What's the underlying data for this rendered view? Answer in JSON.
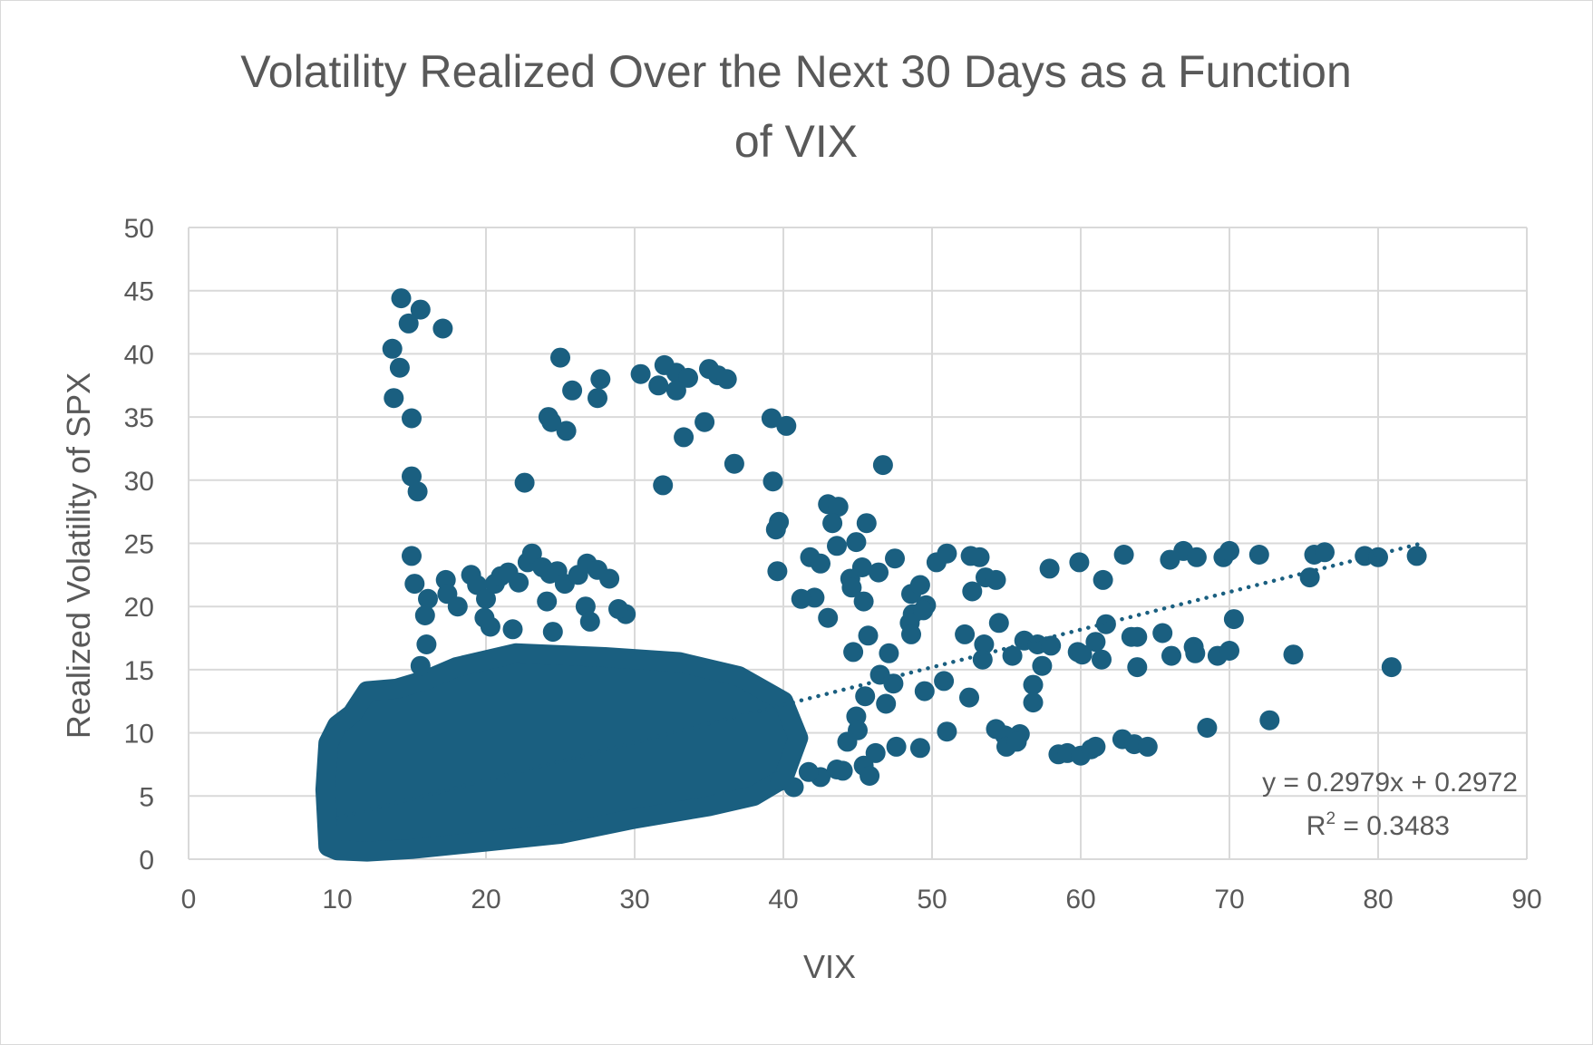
{
  "chart_data": {
    "type": "scatter",
    "title_lines": [
      "Volatility Realized Over the Next 30 Days as a Function",
      "of VIX"
    ],
    "xlabel": "VIX",
    "ylabel": "Realized Volatility of SPX",
    "xlim": [
      0,
      90
    ],
    "ylim": [
      0,
      50
    ],
    "x_ticks": [
      0,
      10,
      20,
      30,
      40,
      50,
      60,
      70,
      80,
      90
    ],
    "y_ticks": [
      0,
      5,
      10,
      15,
      20,
      25,
      30,
      35,
      40,
      45,
      50
    ],
    "grid": true,
    "point_color": "#1a5f80",
    "trendline": {
      "type": "linear",
      "style": "dotted",
      "slope": 0.2979,
      "intercept": 0.2972,
      "x_range": [
        10,
        83
      ],
      "equation_text": "y = 0.2979x + 0.2972",
      "r2_prefix": "R",
      "r2_superscript": "2",
      "r2_suffix": " = 0.3483"
    },
    "points": [
      [
        14.3,
        44.4
      ],
      [
        15.6,
        43.5
      ],
      [
        14.8,
        42.4
      ],
      [
        17.1,
        42.0
      ],
      [
        13.7,
        40.4
      ],
      [
        14.2,
        38.9
      ],
      [
        13.8,
        36.5
      ],
      [
        15.0,
        34.9
      ],
      [
        15.0,
        30.3
      ],
      [
        15.4,
        29.1
      ],
      [
        15.0,
        24.0
      ],
      [
        15.2,
        21.8
      ],
      [
        16.1,
        20.6
      ],
      [
        15.9,
        19.3
      ],
      [
        16.0,
        17.0
      ],
      [
        15.6,
        15.3
      ],
      [
        25.0,
        39.7
      ],
      [
        25.8,
        37.1
      ],
      [
        27.7,
        38.0
      ],
      [
        27.5,
        36.5
      ],
      [
        24.2,
        35.0
      ],
      [
        24.4,
        34.6
      ],
      [
        25.4,
        33.9
      ],
      [
        22.6,
        29.8
      ],
      [
        30.4,
        38.4
      ],
      [
        32.0,
        39.1
      ],
      [
        32.8,
        38.5
      ],
      [
        33.6,
        38.1
      ],
      [
        31.6,
        37.5
      ],
      [
        32.8,
        37.1
      ],
      [
        35.0,
        38.8
      ],
      [
        35.6,
        38.3
      ],
      [
        36.2,
        38.0
      ],
      [
        34.7,
        34.6
      ],
      [
        33.3,
        33.4
      ],
      [
        36.7,
        31.3
      ],
      [
        31.9,
        29.6
      ],
      [
        39.2,
        34.9
      ],
      [
        40.2,
        34.3
      ],
      [
        39.3,
        29.9
      ],
      [
        39.7,
        26.7
      ],
      [
        39.5,
        26.1
      ],
      [
        39.6,
        22.8
      ],
      [
        43.0,
        28.1
      ],
      [
        43.7,
        27.9
      ],
      [
        43.3,
        26.6
      ],
      [
        45.6,
        26.6
      ],
      [
        43.6,
        24.8
      ],
      [
        44.9,
        25.1
      ],
      [
        46.7,
        31.2
      ],
      [
        41.8,
        23.9
      ],
      [
        42.5,
        23.4
      ],
      [
        44.5,
        22.2
      ],
      [
        45.3,
        23.1
      ],
      [
        46.4,
        22.7
      ],
      [
        47.5,
        23.8
      ],
      [
        44.6,
        21.5
      ],
      [
        45.4,
        20.4
      ],
      [
        42.1,
        20.7
      ],
      [
        41.2,
        20.6
      ],
      [
        43.0,
        19.1
      ],
      [
        17.3,
        22.1
      ],
      [
        17.4,
        21.0
      ],
      [
        18.1,
        20.0
      ],
      [
        19.0,
        22.5
      ],
      [
        19.4,
        21.7
      ],
      [
        20.0,
        20.6
      ],
      [
        20.6,
        21.8
      ],
      [
        21.0,
        22.4
      ],
      [
        21.5,
        22.7
      ],
      [
        22.2,
        21.9
      ],
      [
        22.8,
        23.5
      ],
      [
        23.1,
        24.2
      ],
      [
        23.8,
        23.1
      ],
      [
        24.3,
        22.6
      ],
      [
        24.8,
        22.8
      ],
      [
        25.3,
        21.8
      ],
      [
        26.2,
        22.5
      ],
      [
        26.8,
        23.4
      ],
      [
        27.5,
        22.9
      ],
      [
        28.3,
        22.2
      ],
      [
        24.1,
        20.4
      ],
      [
        26.7,
        20.0
      ],
      [
        27.0,
        18.8
      ],
      [
        29.4,
        19.4
      ],
      [
        28.9,
        19.8
      ],
      [
        19.9,
        19.1
      ],
      [
        20.3,
        18.4
      ],
      [
        21.8,
        18.2
      ],
      [
        24.5,
        18.0
      ],
      [
        48.6,
        21.0
      ],
      [
        49.2,
        21.7
      ],
      [
        49.6,
        20.1
      ],
      [
        50.3,
        23.5
      ],
      [
        51.0,
        24.2
      ],
      [
        52.6,
        24.0
      ],
      [
        53.2,
        23.9
      ],
      [
        53.6,
        22.3
      ],
      [
        54.3,
        22.1
      ],
      [
        52.7,
        21.2
      ],
      [
        48.7,
        19.4
      ],
      [
        49.4,
        19.7
      ],
      [
        48.5,
        18.7
      ],
      [
        48.6,
        17.8
      ],
      [
        57.9,
        23.0
      ],
      [
        59.9,
        23.5
      ],
      [
        62.9,
        24.1
      ],
      [
        61.5,
        22.1
      ],
      [
        66.0,
        23.7
      ],
      [
        66.9,
        24.4
      ],
      [
        67.8,
        23.9
      ],
      [
        69.6,
        23.9
      ],
      [
        70.0,
        24.4
      ],
      [
        72.0,
        24.1
      ],
      [
        75.7,
        24.1
      ],
      [
        76.4,
        24.3
      ],
      [
        79.1,
        24.0
      ],
      [
        80.0,
        23.9
      ],
      [
        82.6,
        24.0
      ],
      [
        75.4,
        22.3
      ],
      [
        70.3,
        19.0
      ],
      [
        61.7,
        18.6
      ],
      [
        63.4,
        17.6
      ],
      [
        63.8,
        17.6
      ],
      [
        65.5,
        17.9
      ],
      [
        67.6,
        16.8
      ],
      [
        56.2,
        17.3
      ],
      [
        57.1,
        17.0
      ],
      [
        58.0,
        16.9
      ],
      [
        61.0,
        17.2
      ],
      [
        59.8,
        16.4
      ],
      [
        60.1,
        16.2
      ],
      [
        61.4,
        15.8
      ],
      [
        63.8,
        15.2
      ],
      [
        66.1,
        16.1
      ],
      [
        67.7,
        16.3
      ],
      [
        69.2,
        16.1
      ],
      [
        70.0,
        16.5
      ],
      [
        74.3,
        16.2
      ],
      [
        80.9,
        15.2
      ],
      [
        57.4,
        15.3
      ],
      [
        55.4,
        16.1
      ],
      [
        53.5,
        17.0
      ],
      [
        53.4,
        15.8
      ],
      [
        54.5,
        18.7
      ],
      [
        52.2,
        17.8
      ],
      [
        50.8,
        14.1
      ],
      [
        49.5,
        13.3
      ],
      [
        52.5,
        12.8
      ],
      [
        56.8,
        13.8
      ],
      [
        56.8,
        12.4
      ],
      [
        51.0,
        10.1
      ],
      [
        54.3,
        10.3
      ],
      [
        54.9,
        9.8
      ],
      [
        55.0,
        8.9
      ],
      [
        55.9,
        9.9
      ],
      [
        55.7,
        9.3
      ],
      [
        62.8,
        9.5
      ],
      [
        63.6,
        9.1
      ],
      [
        64.5,
        8.9
      ],
      [
        68.5,
        10.4
      ],
      [
        72.7,
        11.0
      ],
      [
        58.5,
        8.3
      ],
      [
        59.1,
        8.4
      ],
      [
        60.0,
        8.2
      ],
      [
        60.7,
        8.7
      ],
      [
        61.0,
        8.9
      ],
      [
        47.6,
        8.9
      ],
      [
        49.2,
        8.8
      ],
      [
        46.2,
        8.4
      ],
      [
        45.4,
        7.4
      ],
      [
        45.8,
        6.6
      ],
      [
        44.0,
        7.0
      ],
      [
        42.5,
        6.5
      ],
      [
        41.7,
        6.9
      ],
      [
        40.7,
        5.7
      ],
      [
        39.8,
        6.2
      ],
      [
        47.1,
        16.3
      ],
      [
        45.7,
        17.7
      ],
      [
        44.7,
        16.4
      ],
      [
        46.5,
        14.6
      ],
      [
        47.4,
        13.9
      ],
      [
        45.5,
        12.9
      ],
      [
        46.9,
        12.3
      ],
      [
        44.9,
        11.3
      ],
      [
        45.0,
        10.2
      ],
      [
        44.3,
        9.3
      ],
      [
        43.6,
        7.1
      ]
    ]
  }
}
